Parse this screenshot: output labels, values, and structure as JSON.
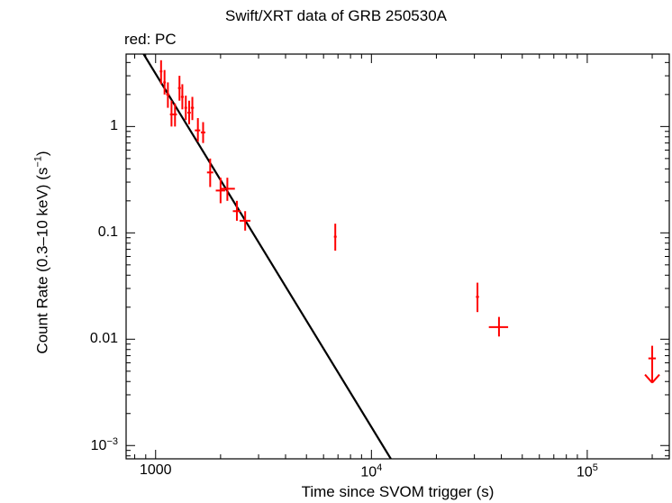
{
  "chart_data": {
    "type": "scatter",
    "title": "Swift/XRT data of GRB 250530A",
    "subtitle": "red: PC",
    "xlabel": "Time since SVOM trigger (s)",
    "ylabel": "Count Rate (0.3–10 keV) (s",
    "ylabel_sup": "−1",
    "ylabel_end": ")",
    "xscale": "log",
    "yscale": "log",
    "xlim": [
      730,
      240000
    ],
    "ylim": [
      0.00075,
      4.8
    ],
    "x_ticks": [
      {
        "value": 1000,
        "base": "1000",
        "sup": ""
      },
      {
        "value": 10000,
        "base": "10",
        "sup": "4"
      },
      {
        "value": 100000,
        "base": "10",
        "sup": "5"
      }
    ],
    "y_ticks": [
      {
        "value": 1,
        "base": "1",
        "sup": ""
      },
      {
        "value": 0.1,
        "base": "0.1",
        "sup": ""
      },
      {
        "value": 0.01,
        "base": "0.01",
        "sup": ""
      },
      {
        "value": 0.001,
        "base": "10",
        "sup": "−3"
      }
    ],
    "series": [
      {
        "color": "#ff0000",
        "points": [
          {
            "x": 1060,
            "x_lo": 1045,
            "x_hi": 1075,
            "y": 3.3,
            "y_lo": 2.5,
            "y_hi": 4.2
          },
          {
            "x": 1100,
            "x_lo": 1085,
            "x_hi": 1115,
            "y": 2.6,
            "y_lo": 2.0,
            "y_hi": 3.4
          },
          {
            "x": 1140,
            "x_lo": 1120,
            "x_hi": 1160,
            "y": 2.0,
            "y_lo": 1.5,
            "y_hi": 2.6
          },
          {
            "x": 1185,
            "x_lo": 1165,
            "x_hi": 1210,
            "y": 1.3,
            "y_lo": 1.0,
            "y_hi": 1.75
          },
          {
            "x": 1230,
            "x_lo": 1210,
            "x_hi": 1255,
            "y": 1.3,
            "y_lo": 1.0,
            "y_hi": 1.65
          },
          {
            "x": 1290,
            "x_lo": 1270,
            "x_hi": 1310,
            "y": 2.3,
            "y_lo": 1.75,
            "y_hi": 3.0
          },
          {
            "x": 1330,
            "x_lo": 1310,
            "x_hi": 1350,
            "y": 1.9,
            "y_lo": 1.45,
            "y_hi": 2.5
          },
          {
            "x": 1380,
            "x_lo": 1360,
            "x_hi": 1400,
            "y": 1.5,
            "y_lo": 1.15,
            "y_hi": 1.95
          },
          {
            "x": 1430,
            "x_lo": 1405,
            "x_hi": 1455,
            "y": 1.35,
            "y_lo": 1.05,
            "y_hi": 1.75
          },
          {
            "x": 1480,
            "x_lo": 1455,
            "x_hi": 1505,
            "y": 1.5,
            "y_lo": 1.15,
            "y_hi": 1.9
          },
          {
            "x": 1570,
            "x_lo": 1520,
            "x_hi": 1610,
            "y": 0.92,
            "y_lo": 0.72,
            "y_hi": 1.2
          },
          {
            "x": 1660,
            "x_lo": 1620,
            "x_hi": 1700,
            "y": 0.88,
            "y_lo": 0.7,
            "y_hi": 1.1
          },
          {
            "x": 1790,
            "x_lo": 1730,
            "x_hi": 1850,
            "y": 0.37,
            "y_lo": 0.27,
            "y_hi": 0.5
          },
          {
            "x": 2000,
            "x_lo": 1900,
            "x_hi": 2100,
            "y": 0.25,
            "y_lo": 0.19,
            "y_hi": 0.33
          },
          {
            "x": 2150,
            "x_lo": 2000,
            "x_hi": 2330,
            "y": 0.26,
            "y_lo": 0.2,
            "y_hi": 0.33
          },
          {
            "x": 2380,
            "x_lo": 2280,
            "x_hi": 2480,
            "y": 0.16,
            "y_lo": 0.13,
            "y_hi": 0.2
          },
          {
            "x": 2600,
            "x_lo": 2450,
            "x_hi": 2750,
            "y": 0.13,
            "y_lo": 0.105,
            "y_hi": 0.16
          },
          {
            "x": 6800,
            "x_lo": 6700,
            "x_hi": 6900,
            "y": 0.092,
            "y_lo": 0.068,
            "y_hi": 0.122
          },
          {
            "x": 31000,
            "x_lo": 30500,
            "x_hi": 31500,
            "y": 0.025,
            "y_lo": 0.018,
            "y_hi": 0.034
          },
          {
            "x": 39000,
            "x_lo": 35000,
            "x_hi": 43000,
            "y": 0.013,
            "y_lo": 0.0106,
            "y_hi": 0.0162
          }
        ],
        "upper_limits": [
          {
            "x": 200000,
            "x_lo": 192000,
            "x_hi": 208000,
            "y": 0.0066,
            "y_arrow": 0.0039
          }
        ]
      }
    ],
    "model_line": {
      "color": "#000000",
      "points": [
        {
          "x": 880,
          "y": 4.8
        },
        {
          "x": 12300,
          "y": 0.00075
        }
      ]
    }
  }
}
